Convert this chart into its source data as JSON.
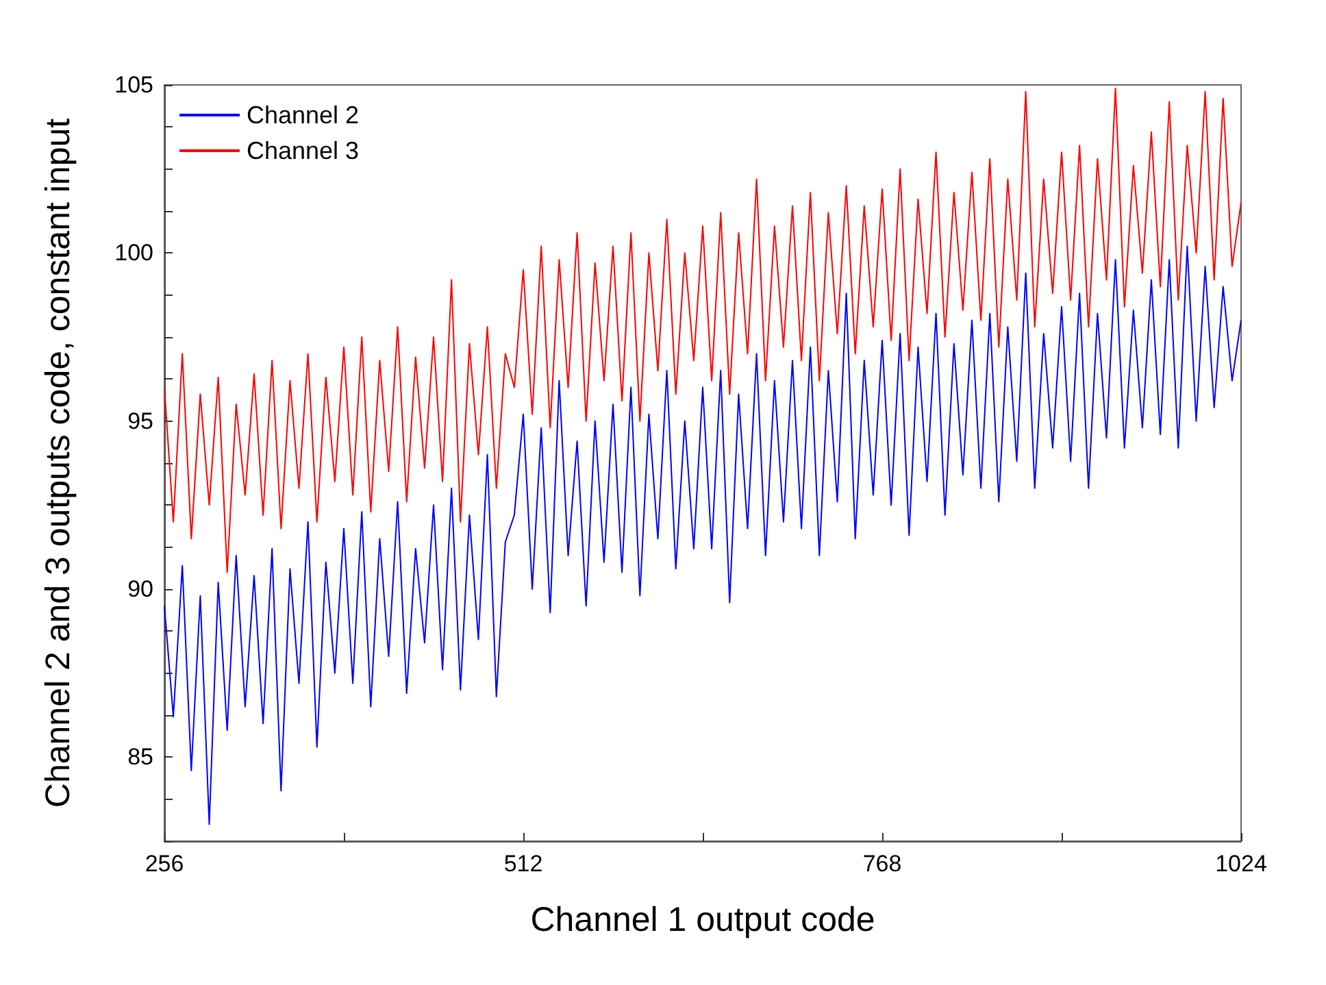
{
  "chart_data": {
    "type": "line",
    "xlabel": "Channel 1 output code",
    "ylabel": "Channel 2 and 3 outputs code, constant input",
    "x": [
      256,
      262.4,
      268.8,
      275.2,
      281.6,
      288,
      294.4,
      300.8,
      307.2,
      313.6,
      320,
      326.4,
      332.8,
      339.2,
      345.6,
      352,
      358.4,
      364.8,
      371.2,
      377.6,
      384,
      390.4,
      396.8,
      403.2,
      409.6,
      416,
      422.4,
      428.8,
      435.2,
      441.6,
      448,
      454.4,
      460.8,
      467.2,
      473.6,
      480,
      486.4,
      492.8,
      499.2,
      505.6,
      512,
      518.4,
      524.8,
      531.2,
      537.6,
      544,
      550.4,
      556.8,
      563.2,
      569.6,
      576,
      582.4,
      588.8,
      595.2,
      601.6,
      608,
      614.4,
      620.8,
      627.2,
      633.6,
      640,
      646.4,
      652.8,
      659.2,
      665.6,
      672,
      678.4,
      684.8,
      691.2,
      697.6,
      704,
      710.4,
      716.8,
      723.2,
      729.6,
      736,
      742.4,
      748.8,
      755.2,
      761.6,
      768,
      774.4,
      780.8,
      787.2,
      793.6,
      800,
      806.4,
      812.8,
      819.2,
      825.6,
      832,
      838.4,
      844.8,
      851.2,
      857.6,
      864,
      870.4,
      876.8,
      883.2,
      889.6,
      896,
      902.4,
      908.8,
      915.2,
      921.6,
      928,
      934.4,
      940.8,
      947.2,
      953.6,
      960,
      966.4,
      972.8,
      979.2,
      985.6,
      992,
      998.4,
      1004.8,
      1011.2,
      1017.6,
      1024
    ],
    "series": [
      {
        "name": "Channel 2",
        "color": "#0000ff",
        "values": [
          89.5,
          86.2,
          90.7,
          84.6,
          89.8,
          83.0,
          90.2,
          85.8,
          91.0,
          86.5,
          90.4,
          86.0,
          91.2,
          84.0,
          90.6,
          87.2,
          92.0,
          85.3,
          90.8,
          87.5,
          91.8,
          87.2,
          92.3,
          86.5,
          91.5,
          88.0,
          92.6,
          86.9,
          91.2,
          88.4,
          92.5,
          87.6,
          93.0,
          87.0,
          92.2,
          88.5,
          94.0,
          86.8,
          91.4,
          92.2,
          95.2,
          90.0,
          94.8,
          89.3,
          96.2,
          91.0,
          94.4,
          89.5,
          95.0,
          90.8,
          95.5,
          90.5,
          96.0,
          89.8,
          95.2,
          91.5,
          96.5,
          90.6,
          95.0,
          91.2,
          96.0,
          91.2,
          96.5,
          89.6,
          95.8,
          91.8,
          97.0,
          91.0,
          96.2,
          92.0,
          96.8,
          91.8,
          97.2,
          91.0,
          96.5,
          92.6,
          98.8,
          91.5,
          96.8,
          92.8,
          97.4,
          92.5,
          97.6,
          91.6,
          97.2,
          93.2,
          98.2,
          92.2,
          97.3,
          93.4,
          98.0,
          93.0,
          98.2,
          92.6,
          97.8,
          93.8,
          99.4,
          93.0,
          97.6,
          94.2,
          98.4,
          93.8,
          98.8,
          93.0,
          98.2,
          94.5,
          99.8,
          94.2,
          98.3,
          94.8,
          99.2,
          94.6,
          99.8,
          94.2,
          100.2,
          95.0,
          99.6,
          95.4,
          99.0,
          96.2,
          98.0
        ]
      },
      {
        "name": "Channel 3",
        "color": "#ff0000",
        "values": [
          96.0,
          92.0,
          97.0,
          91.5,
          95.8,
          92.5,
          96.3,
          90.5,
          95.5,
          92.8,
          96.4,
          92.2,
          96.8,
          91.8,
          96.2,
          93.0,
          97.0,
          92.0,
          96.3,
          93.2,
          97.2,
          92.8,
          97.5,
          92.3,
          96.8,
          93.5,
          97.8,
          92.6,
          96.9,
          93.6,
          97.5,
          93.2,
          99.2,
          92.0,
          97.3,
          94.0,
          97.8,
          93.0,
          97.0,
          96.0,
          99.5,
          95.2,
          100.2,
          94.8,
          99.8,
          96.0,
          100.6,
          95.0,
          99.7,
          96.2,
          100.2,
          95.6,
          100.6,
          95.0,
          100.0,
          96.5,
          101.0,
          95.8,
          100.0,
          96.8,
          100.8,
          96.2,
          101.2,
          95.8,
          100.6,
          97.0,
          102.2,
          96.2,
          100.8,
          97.2,
          101.4,
          96.8,
          101.8,
          96.2,
          101.2,
          97.6,
          102.0,
          97.0,
          101.4,
          97.8,
          101.9,
          97.4,
          102.5,
          96.8,
          101.6,
          98.2,
          103.0,
          97.5,
          101.8,
          98.3,
          102.4,
          98.0,
          102.8,
          97.2,
          102.2,
          98.6,
          104.8,
          97.8,
          102.2,
          98.8,
          103.0,
          98.6,
          103.2,
          97.8,
          102.8,
          99.2,
          104.9,
          98.4,
          102.6,
          99.4,
          103.6,
          99.0,
          104.5,
          98.6,
          103.2,
          100.0,
          104.8,
          99.2,
          104.6,
          99.6,
          101.5
        ]
      }
    ],
    "xlim": [
      256,
      1024
    ],
    "xticks": [
      256,
      {
        "value": 384,
        "label": null
      },
      512,
      {
        "value": 640,
        "label": null
      },
      768,
      {
        "value": 896,
        "label": null
      },
      1024
    ],
    "ylim": [
      82.5,
      105
    ],
    "yticks": [
      {
        "value": 82.5,
        "label": null
      },
      {
        "value": 83.75,
        "label": null
      },
      85,
      {
        "value": 86.25,
        "label": null
      },
      {
        "value": 87.5,
        "label": null
      },
      {
        "value": 88.75,
        "label": null
      },
      90,
      {
        "value": 91.25,
        "label": null
      },
      {
        "value": 92.5,
        "label": null
      },
      {
        "value": 93.75,
        "label": null
      },
      95,
      {
        "value": 96.25,
        "label": null
      },
      {
        "value": 97.5,
        "label": null
      },
      {
        "value": 98.75,
        "label": null
      },
      100,
      {
        "value": 101.25,
        "label": null
      },
      {
        "value": 102.5,
        "label": null
      },
      {
        "value": 103.75,
        "label": null
      },
      105
    ],
    "grid": false,
    "legend": "top left",
    "marker": "none",
    "line_style": "solid"
  }
}
